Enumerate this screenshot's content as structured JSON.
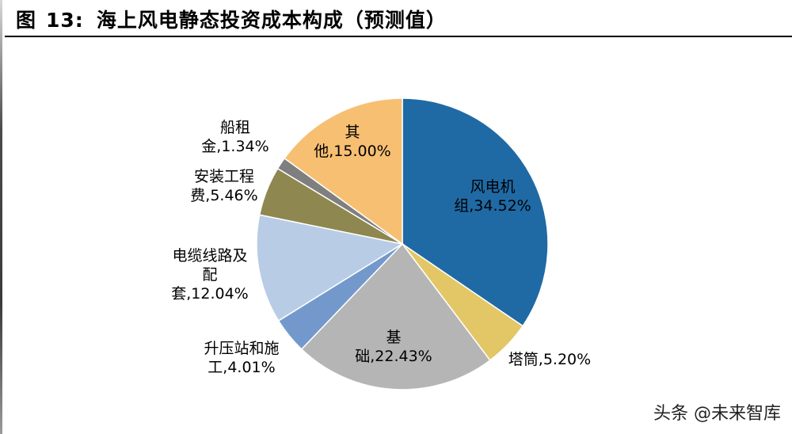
{
  "header": {
    "figure_prefix": "图",
    "figure_number": "13:",
    "title": "海上风电静态投资成本构成（预测值）"
  },
  "chart_data": {
    "type": "pie",
    "slices": [
      {
        "label_lines": [
          "风电机",
          "组,34.52%"
        ],
        "name": "风电机组",
        "value": 34.52,
        "color": "#1f6aa5"
      },
      {
        "label_lines": [
          "塔筒,5.20%"
        ],
        "name": "塔筒",
        "value": 5.2,
        "color": "#e3c766"
      },
      {
        "label_lines": [
          "基",
          "础,22.43%"
        ],
        "name": "基础",
        "value": 22.43,
        "color": "#b5b5b5"
      },
      {
        "label_lines": [
          "升压站和施",
          "工,4.01%"
        ],
        "name": "升压站和施工",
        "value": 4.01,
        "color": "#7399cc"
      },
      {
        "label_lines": [
          "电缆线路及",
          "配",
          "套,12.04%"
        ],
        "name": "电缆线路及配套",
        "value": 12.04,
        "color": "#b8cce6"
      },
      {
        "label_lines": [
          "安装工程",
          "费,5.46%"
        ],
        "name": "安装工程费",
        "value": 5.46,
        "color": "#8f8750"
      },
      {
        "label_lines": [
          "船租",
          "金,1.34%"
        ],
        "name": "船租金",
        "value": 1.34,
        "color": "#7f7f7f"
      },
      {
        "label_lines": [
          "其",
          "他,15.00%"
        ],
        "name": "其他",
        "value": 15.0,
        "color": "#f7bf72"
      }
    ]
  },
  "watermark": "头条 @未来智库"
}
